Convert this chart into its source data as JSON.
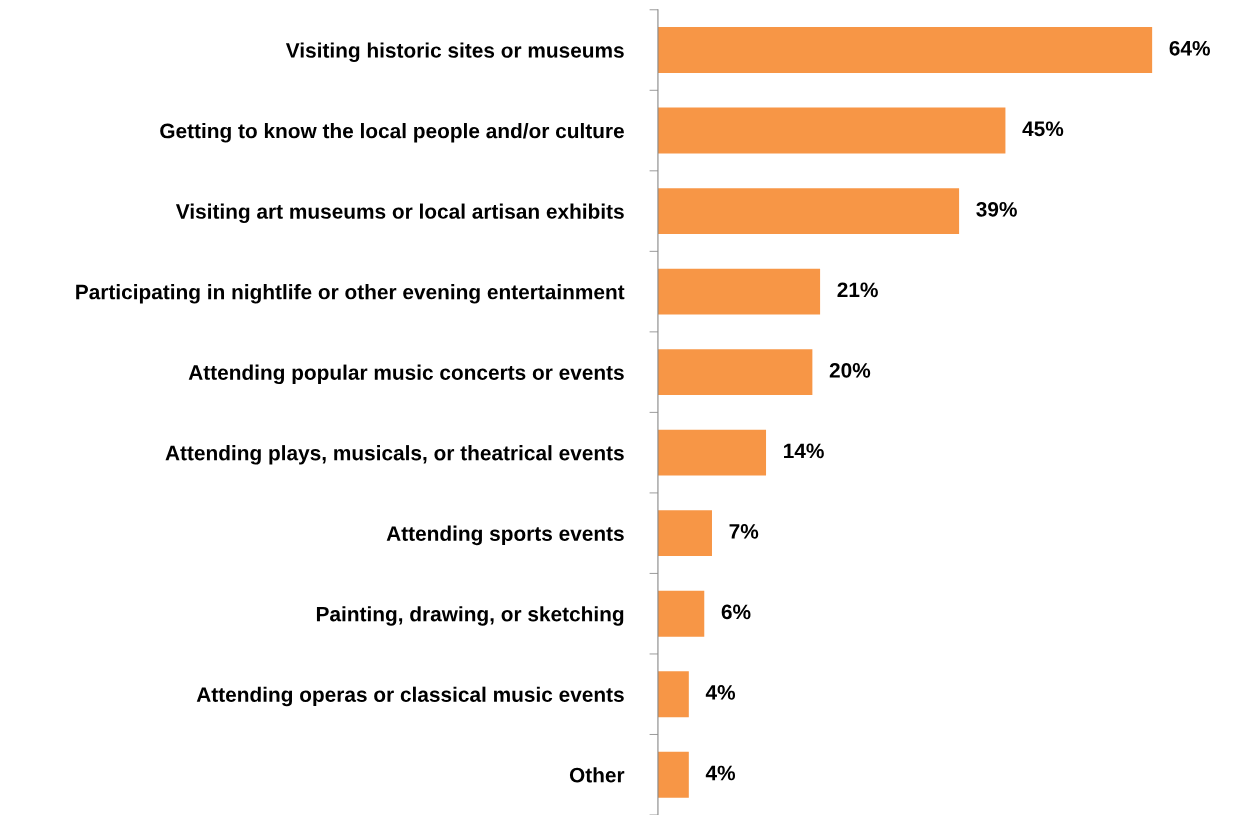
{
  "chart_data": {
    "type": "bar",
    "orientation": "horizontal",
    "categories": [
      "Visiting historic sites or museums",
      "Getting to know the local people and/or culture",
      "Visiting art museums or local artisan exhibits",
      "Participating in nightlife or other evening entertainment",
      "Attending popular music concerts or events",
      "Attending plays, musicals, or theatrical events",
      "Attending sports events",
      "Painting, drawing, or sketching",
      "Attending operas or classical music events",
      "Other"
    ],
    "values": [
      64,
      45,
      39,
      21,
      20,
      14,
      7,
      6,
      4,
      4
    ],
    "value_labels": [
      "64%",
      "45%",
      "39%",
      "21%",
      "20%",
      "14%",
      "7%",
      "6%",
      "4%",
      "4%"
    ],
    "color": "#f79646",
    "grid": false,
    "legend": false
  }
}
